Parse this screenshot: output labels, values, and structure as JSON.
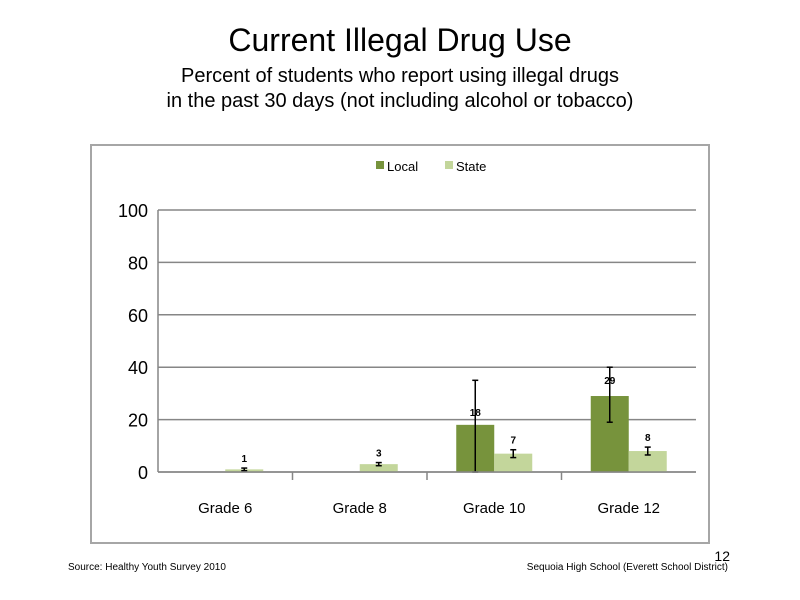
{
  "slide": {
    "title": "Current Illegal Drug Use",
    "subtitle_line1": "Percent of students who report using illegal drugs",
    "subtitle_line2": "in the past 30 days (not including  alcohol or tobacco)",
    "source": "Source: Healthy Youth Survey 2010",
    "school": "Sequoia High School (Everett School District)",
    "page_number": "12"
  },
  "chart_data": {
    "type": "bar",
    "categories": [
      "Grade 6",
      "Grade 8",
      "Grade 10",
      "Grade 12"
    ],
    "series": [
      {
        "name": "Local",
        "color": "#77933c",
        "values": [
          null,
          null,
          18,
          29
        ],
        "labels": [
          "",
          "",
          "18",
          "29"
        ],
        "error_low": [
          null,
          null,
          0,
          19
        ],
        "error_high": [
          null,
          null,
          35,
          40
        ]
      },
      {
        "name": "State",
        "color": "#c3d69b",
        "values": [
          1,
          3,
          7,
          8
        ],
        "labels": [
          "1",
          "3",
          "7",
          "8"
        ],
        "error_low": [
          0.5,
          2.4,
          5.5,
          6.5
        ],
        "error_high": [
          1.5,
          3.6,
          8.5,
          9.5
        ]
      }
    ],
    "ylim": [
      0,
      100
    ],
    "yticks": [
      "0",
      "20",
      "40",
      "60",
      "80",
      "100"
    ],
    "ytick_values": [
      0,
      20,
      40,
      60,
      80,
      100
    ],
    "grid": true,
    "legend_position": "top"
  }
}
